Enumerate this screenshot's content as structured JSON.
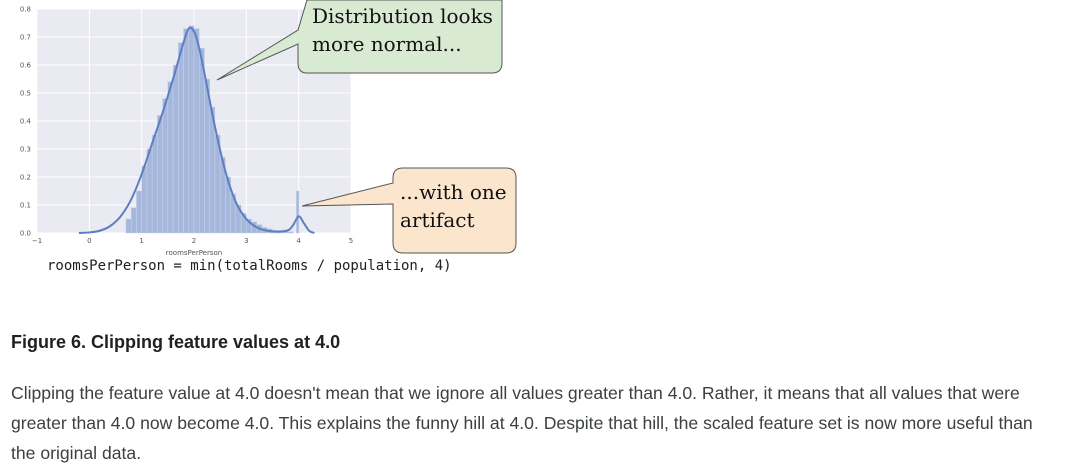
{
  "chart_data": {
    "type": "histogram",
    "xlabel": "roomsPerPerson",
    "ylabel": "",
    "title": "",
    "xlim": [
      -1,
      5
    ],
    "ylim": [
      0,
      0.8
    ],
    "xticks": [
      "−1",
      "0",
      "1",
      "2",
      "3",
      "4",
      "5"
    ],
    "yticks": [
      "0.0",
      "0.1",
      "0.2",
      "0.3",
      "0.4",
      "0.5",
      "0.6",
      "0.7",
      "0.8"
    ],
    "grid": true,
    "bar_color": "#a6b7dc",
    "line_color": "#5b7fc0",
    "background": "#eaeaf2",
    "histogram": {
      "x": [
        0.75,
        0.85,
        0.95,
        1.05,
        1.15,
        1.25,
        1.35,
        1.45,
        1.55,
        1.65,
        1.75,
        1.85,
        1.95,
        2.05,
        2.15,
        2.25,
        2.35,
        2.45,
        2.55,
        2.65,
        2.75,
        2.85,
        2.95,
        3.05,
        3.15,
        3.25,
        3.35,
        3.45,
        3.55,
        3.65,
        3.75,
        3.85,
        3.98
      ],
      "values": [
        0.05,
        0.09,
        0.15,
        0.24,
        0.3,
        0.35,
        0.42,
        0.48,
        0.54,
        0.6,
        0.68,
        0.73,
        0.74,
        0.73,
        0.66,
        0.55,
        0.45,
        0.35,
        0.27,
        0.2,
        0.14,
        0.1,
        0.07,
        0.05,
        0.04,
        0.03,
        0.02,
        0.015,
        0.01,
        0.008,
        0.006,
        0.005,
        0.15
      ]
    },
    "kde": {
      "x": [
        -0.2,
        0.0,
        0.2,
        0.4,
        0.6,
        0.8,
        1.0,
        1.2,
        1.4,
        1.6,
        1.8,
        1.9,
        2.0,
        2.1,
        2.2,
        2.4,
        2.6,
        2.8,
        3.0,
        3.2,
        3.4,
        3.6,
        3.8,
        3.9,
        4.0,
        4.1,
        4.2,
        4.3
      ],
      "values": [
        0.0,
        0.002,
        0.008,
        0.025,
        0.06,
        0.12,
        0.21,
        0.32,
        0.43,
        0.55,
        0.68,
        0.73,
        0.72,
        0.66,
        0.57,
        0.38,
        0.22,
        0.11,
        0.05,
        0.02,
        0.008,
        0.005,
        0.01,
        0.03,
        0.06,
        0.035,
        0.008,
        0.0
      ]
    },
    "annotations": [
      {
        "lines": [
          "Distribution looks",
          "more normal..."
        ],
        "fill": "#d9ead3"
      },
      {
        "lines": [
          "...with one",
          "artifact"
        ],
        "fill": "#fce5cd"
      }
    ]
  },
  "formula": "roomsPerPerson = min(totalRooms / population, 4)",
  "caption": "Figure 6. Clipping feature values at 4.0",
  "paragraph": "Clipping the feature value at 4.0 doesn't mean that we ignore all values greater than 4.0. Rather, it means that all values that were greater than 4.0 now become 4.0. This explains the funny hill at 4.0. Despite that hill, the scaled feature set is now more useful than the original data."
}
